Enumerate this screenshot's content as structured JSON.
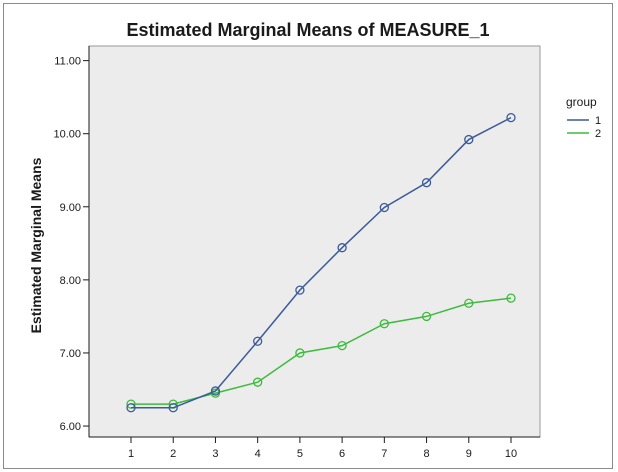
{
  "chart_data": {
    "type": "line",
    "title": "Estimated Marginal Means of MEASURE_1",
    "xlabel": "",
    "ylabel": "Estimated Marginal Means",
    "categories": [
      "1",
      "2",
      "3",
      "4",
      "5",
      "6",
      "7",
      "8",
      "9",
      "10"
    ],
    "ylim": [
      5.85,
      11.2
    ],
    "yticks": [
      "6.00",
      "7.00",
      "8.00",
      "9.00",
      "10.00",
      "11.00"
    ],
    "grid": false,
    "legend": {
      "title": "group",
      "placement": "right"
    },
    "series": [
      {
        "name": "1",
        "color": "#3a5a9b",
        "values": [
          6.25,
          6.25,
          6.48,
          7.16,
          7.86,
          8.44,
          8.99,
          9.33,
          9.92,
          10.22
        ]
      },
      {
        "name": "2",
        "color": "#3dbb3d",
        "values": [
          6.3,
          6.3,
          6.45,
          6.6,
          7.0,
          7.1,
          7.4,
          7.5,
          7.68,
          7.75
        ]
      }
    ]
  },
  "colors": {
    "plot_background": "#ececec",
    "axis": "#1a1a1a"
  }
}
